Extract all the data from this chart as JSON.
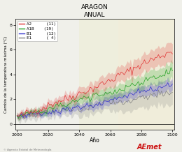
{
  "title": "ARAGON",
  "subtitle": "ANUAL",
  "xlabel": "Año",
  "ylabel": "Cambio de la temperatura máxima (°C)",
  "xlim": [
    1999,
    2101
  ],
  "ylim": [
    -0.5,
    8.5
  ],
  "yticks": [
    0,
    2,
    4,
    6,
    8
  ],
  "xticks": [
    2000,
    2020,
    2040,
    2060,
    2080,
    2100
  ],
  "bg_color": "#f0f0ea",
  "highlight_regions": [
    {
      "xmin": 2040,
      "xmax": 2065,
      "color": "#eeeedd"
    },
    {
      "xmin": 2065,
      "xmax": 2101,
      "color": "#f0edda"
    }
  ],
  "scenarios": [
    {
      "name": "A2",
      "count": "(11)",
      "color": "#e03030",
      "band_alpha": 0.22
    },
    {
      "name": "A1B",
      "count": "(19)",
      "color": "#20a020",
      "band_alpha": 0.22
    },
    {
      "name": "B1",
      "count": "(13)",
      "color": "#3030cc",
      "band_alpha": 0.22
    },
    {
      "name": "E1",
      "count": "( 4)",
      "color": "#808080",
      "band_alpha": 0.22
    }
  ],
  "watermark": "© Agencia Estatal de Meteorología",
  "seed": 42,
  "noise_std": 0.07,
  "band_narrow": 0.15
}
